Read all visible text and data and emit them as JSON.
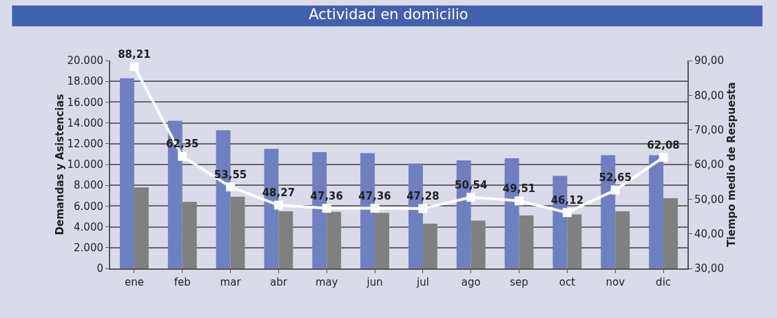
{
  "chart_data": {
    "type": "bar",
    "title": "Actividad en domicilio",
    "ylabel": "Demandas y Asistencias",
    "y2label": "Tiempo medio de Respuesta",
    "categories": [
      "ene",
      "feb",
      "mar",
      "abr",
      "may",
      "jun",
      "jul",
      "ago",
      "sep",
      "oct",
      "nov",
      "dic"
    ],
    "series": [
      {
        "color": "#6e7fc2",
        "values": [
          18300,
          14200,
          13300,
          11500,
          11200,
          11100,
          10100,
          10400,
          10600,
          8900,
          10900,
          10900
        ]
      },
      {
        "color": "#808080",
        "values": [
          7800,
          6400,
          6900,
          5500,
          5450,
          5350,
          4300,
          4600,
          5100,
          5200,
          5500,
          6750
        ]
      },
      {
        "type": "line",
        "axis": "y2",
        "color": "#ffffff",
        "marker": "square",
        "values": [
          88.21,
          62.35,
          53.55,
          48.27,
          47.36,
          47.36,
          47.28,
          50.54,
          49.51,
          46.12,
          52.65,
          62.08
        ],
        "value_labels": [
          "88,21",
          "62,35",
          "53,55",
          "48,27",
          "47,36",
          "47,36",
          "47,28",
          "50,54",
          "49,51",
          "46,12",
          "52,65",
          "62,08"
        ]
      }
    ],
    "ylim": [
      0,
      20000
    ],
    "yticks": [
      {
        "value": 0,
        "label": "0"
      },
      {
        "value": 2000,
        "label": "2.000"
      },
      {
        "value": 4000,
        "label": "4.000"
      },
      {
        "value": 6000,
        "label": "6.000"
      },
      {
        "value": 8000,
        "label": "8.000"
      },
      {
        "value": 10000,
        "label": "10.000"
      },
      {
        "value": 12000,
        "label": "12.000"
      },
      {
        "value": 14000,
        "label": "14.000"
      },
      {
        "value": 16000,
        "label": "16.000"
      },
      {
        "value": 18000,
        "label": "18.000"
      },
      {
        "value": 20000,
        "label": "20.000"
      }
    ],
    "y2lim": [
      30,
      90
    ],
    "y2ticks": [
      {
        "value": 30,
        "label": "30,00"
      },
      {
        "value": 40,
        "label": "40,00"
      },
      {
        "value": 50,
        "label": "50,00"
      },
      {
        "value": 60,
        "label": "60,00"
      },
      {
        "value": 70,
        "label": "70,00"
      },
      {
        "value": 80,
        "label": "80,00"
      },
      {
        "value": 90,
        "label": "90,00"
      }
    ],
    "grid": "y"
  }
}
